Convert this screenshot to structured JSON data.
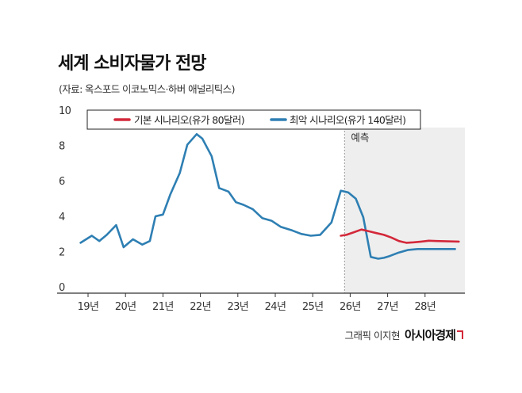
{
  "chart_data": {
    "type": "line",
    "title": "세계 소비자물가 전망",
    "subtitle": "(자료: 옥스포드 이코노믹스·하버 애널리틱스)",
    "x": [
      0,
      0.2,
      0.4,
      0.6,
      0.8,
      1.0,
      1.2,
      1.4,
      1.6,
      1.8,
      2.0,
      2.2,
      2.4,
      2.6,
      2.8,
      3.0,
      3.2,
      3.4,
      3.6,
      3.8,
      4.0,
      4.2,
      4.4,
      4.6,
      4.8,
      5.0,
      5.2,
      5.4,
      5.6,
      5.8,
      6.0,
      6.2,
      6.4,
      6.6,
      6.8,
      7.0,
      7.2,
      7.4,
      7.6,
      7.8,
      8.0,
      8.2,
      8.4,
      8.6,
      8.8,
      9.0,
      9.2
    ],
    "x_ticks": [
      {
        "pos": 0,
        "label": "19년"
      },
      {
        "pos": 1,
        "label": "20년"
      },
      {
        "pos": 2,
        "label": "21년"
      },
      {
        "pos": 3,
        "label": "22년"
      },
      {
        "pos": 4,
        "label": "23년"
      },
      {
        "pos": 5,
        "label": "24년"
      },
      {
        "pos": 6,
        "label": "25년"
      },
      {
        "pos": 7,
        "label": "26년"
      },
      {
        "pos": 8,
        "label": "27년"
      },
      {
        "pos": 9,
        "label": "28년"
      }
    ],
    "ylim": [
      0,
      10
    ],
    "yticks": [
      0,
      2,
      4,
      6,
      8,
      10
    ],
    "forecast_start": 6.85,
    "forecast_label": "예측",
    "series": [
      {
        "name": "기본 시나리오(유가 80달러)",
        "color": "#d3283a",
        "x": [
          6.75,
          6.9,
          7.1,
          7.3,
          7.5,
          7.7,
          7.9,
          8.1,
          8.3,
          8.5,
          8.7,
          8.9,
          9.1,
          9.3,
          9.5,
          9.7,
          9.9
        ],
        "values": [
          3.25,
          3.3,
          3.45,
          3.6,
          3.5,
          3.4,
          3.3,
          3.15,
          2.95,
          2.85,
          2.88,
          2.92,
          2.97,
          2.95,
          2.94,
          2.93,
          2.92
        ]
      },
      {
        "name": "최악 시나리오(유가 140달러)",
        "color": "#2e7fb3",
        "x": [
          -0.2,
          0.1,
          0.3,
          0.5,
          0.75,
          0.95,
          1.2,
          1.45,
          1.65,
          1.8,
          2.0,
          2.2,
          2.45,
          2.65,
          2.9,
          3.05,
          3.3,
          3.5,
          3.75,
          3.95,
          4.15,
          4.4,
          4.65,
          4.9,
          5.15,
          5.45,
          5.7,
          5.95,
          6.2,
          6.5,
          6.75,
          6.95,
          7.15,
          7.35,
          7.55,
          7.75,
          7.9,
          8.05,
          8.3,
          8.55,
          8.8,
          9.05,
          9.3,
          9.55,
          9.8
        ],
        "values": [
          2.85,
          3.25,
          2.95,
          3.3,
          3.85,
          2.6,
          3.05,
          2.75,
          2.95,
          4.35,
          4.45,
          5.6,
          6.8,
          8.4,
          9.0,
          8.75,
          7.75,
          5.95,
          5.75,
          5.15,
          5.0,
          4.75,
          4.25,
          4.1,
          3.75,
          3.55,
          3.35,
          3.25,
          3.3,
          4.0,
          5.8,
          5.7,
          5.35,
          4.3,
          2.05,
          1.95,
          2.0,
          2.1,
          2.3,
          2.45,
          2.5,
          2.5,
          2.5,
          2.5,
          2.5
        ]
      }
    ],
    "legend_position": "top",
    "grid": false
  },
  "credit": {
    "text": "그래픽 이지현",
    "brand": "아시아경제"
  }
}
